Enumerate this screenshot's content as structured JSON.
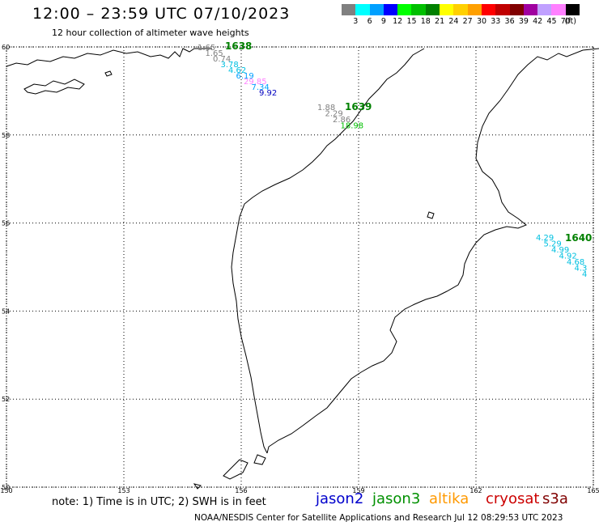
{
  "header": {
    "title": "12:00 – 23:59 UTC 07/10/2023",
    "subtitle": "12 hour collection of altimeter wave heights"
  },
  "legend": {
    "colors": [
      "#808080",
      "#00ffff",
      "#00a0ff",
      "#0000ff",
      "#00ff00",
      "#00c000",
      "#008000",
      "#ffff00",
      "#ffd000",
      "#ffa000",
      "#ff0000",
      "#c00000",
      "#800000",
      "#a000a0",
      "#c0a0ff",
      "#ff80ff",
      "#000000"
    ],
    "labels": [
      "3",
      "6",
      "9",
      "12",
      "15",
      "18",
      "21",
      "24",
      "27",
      "30",
      "33",
      "36",
      "39",
      "42",
      "45",
      "70",
      "(ft)"
    ]
  },
  "map": {
    "lon_range": [
      150,
      165
    ],
    "lat_range": [
      50,
      60
    ],
    "lat_ticks": [
      "60",
      "58",
      "56",
      "54",
      "52",
      "50"
    ],
    "lon_ticks": [
      "150",
      "153",
      "156",
      "159",
      "162",
      "165"
    ],
    "grid": true,
    "passes": [
      {
        "pass_id": "1638",
        "pass_color": "#008000",
        "points": [
          {
            "label": "1.65",
            "color": "#808080"
          },
          {
            "label": "1.65",
            "color": "#808080"
          },
          {
            "label": "0.74",
            "color": "#808080"
          },
          {
            "label": "3.78",
            "color": "#00c0e0"
          },
          {
            "label": "4.62",
            "color": "#00c0e0"
          },
          {
            "label": "6.19",
            "color": "#00a0ff"
          },
          {
            "label": "29.85",
            "color": "#ff80ff"
          },
          {
            "label": "7.34",
            "color": "#00a0ff"
          },
          {
            "label": "9.92",
            "color": "#0000c0"
          }
        ]
      },
      {
        "pass_id": "1639",
        "pass_color": "#008000",
        "points": [
          {
            "label": "1.88",
            "color": "#808080"
          },
          {
            "label": "2.29",
            "color": "#808080"
          },
          {
            "label": "2.86",
            "color": "#808080"
          },
          {
            "label": "18.98",
            "color": "#00c000"
          }
        ]
      },
      {
        "pass_id": "1640",
        "pass_color": "#008000",
        "points": [
          {
            "label": "4.29",
            "color": "#00c0e0"
          },
          {
            "label": "5.29",
            "color": "#00c0e0"
          },
          {
            "label": "4.99",
            "color": "#00c0e0"
          },
          {
            "label": "4.92",
            "color": "#00c0e0"
          },
          {
            "label": "4.68",
            "color": "#00c0e0"
          },
          {
            "label": "4.3",
            "color": "#00c0e0"
          },
          {
            "label": "4",
            "color": "#00c0e0"
          }
        ]
      }
    ]
  },
  "footer": {
    "note": "note: 1) Time is in UTC; 2) SWH is in feet",
    "satellites": [
      {
        "name": "jason2",
        "color": "#0000cc"
      },
      {
        "name": "jason3",
        "color": "#009000"
      },
      {
        "name": "altika",
        "color": "#ff9900"
      },
      {
        "name": "cryosat",
        "color": "#cc0000"
      },
      {
        "name": "s3a",
        "color": "#800000"
      }
    ],
    "credit": "NOAA/NESDIS Center for Satellite Applications and Research     Jul 12 08:29:53 UTC 2023"
  }
}
